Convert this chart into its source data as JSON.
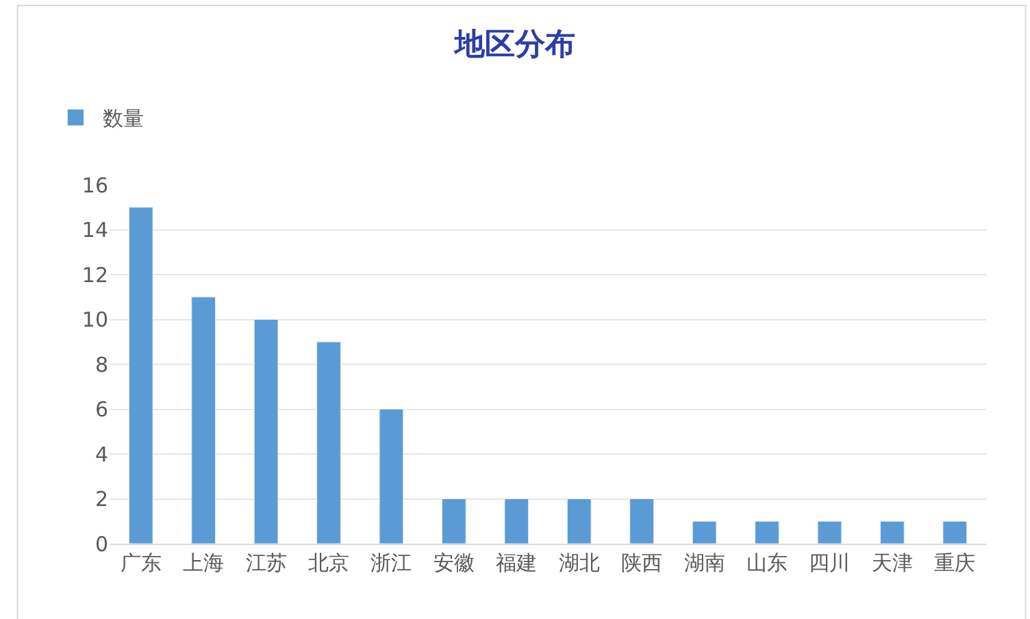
{
  "chart_data": {
    "type": "bar",
    "title": "地区分布",
    "categories": [
      "广东",
      "上海",
      "江苏",
      "北京",
      "浙江",
      "安徽",
      "福建",
      "湖北",
      "陕西",
      "湖南",
      "山东",
      "四川",
      "天津",
      "重庆"
    ],
    "series": [
      {
        "name": "数量",
        "color": "#5b9bd5",
        "values": [
          15,
          11,
          10,
          9,
          6,
          2,
          2,
          2,
          2,
          1,
          1,
          1,
          1,
          1
        ]
      }
    ],
    "ylim": [
      0,
      16
    ],
    "yticks": [
      0,
      2,
      4,
      6,
      8,
      10,
      12,
      14,
      16
    ],
    "grid": "y",
    "legend": "top left"
  }
}
